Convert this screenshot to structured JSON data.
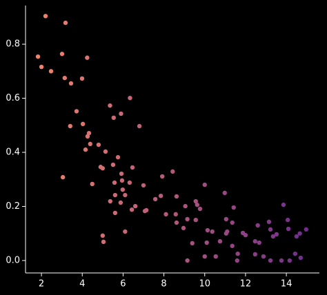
{
  "chart_data": {
    "type": "scatter",
    "x": [
      2.2,
      3.18,
      1.83,
      2.0,
      2.47,
      3.01,
      4.24,
      3.14,
      3.45,
      3.99,
      6.34,
      3.72,
      5.36,
      5.9,
      5.54,
      3.41,
      4.03,
      6.8,
      4.33,
      4.26,
      4.39,
      4.8,
      4.16,
      5.14,
      5.75,
      5.51,
      4.9,
      5.0,
      6.46,
      5.92,
      3.05,
      5.58,
      5.95,
      6.32,
      4.49,
      7.0,
      5.98,
      8.43,
      7.92,
      10.0,
      10.98,
      5.61,
      7.85,
      8.62,
      6.1,
      5.37,
      5.88,
      9.56,
      11.42,
      13.86,
      6.43,
      6.6,
      5.61,
      7.07,
      7.14,
      7.58,
      8.1,
      8.58,
      9.05,
      9.63,
      9.77,
      9.15,
      9.56,
      8.62,
      11.05,
      11.35,
      13.15,
      14.07,
      10.14,
      10.37,
      8.96,
      11.1,
      11.05,
      11.87,
      12.0,
      12.6,
      13.22,
      13.35,
      13.52,
      14.1,
      14.5,
      14.97,
      14.66,
      5.0,
      5.04,
      6.1,
      9.39,
      10.1,
      10.75,
      12.47,
      12.67,
      11.35,
      10.0,
      10.54,
      11.62,
      12.47,
      12.88,
      14.43,
      9.15,
      11.59,
      13.22,
      13.76,
      14.16,
      14.7
    ],
    "values": [
      0.904,
      0.879,
      0.754,
      0.716,
      0.7,
      0.764,
      0.75,
      0.675,
      0.655,
      0.673,
      0.601,
      0.552,
      0.573,
      0.543,
      0.528,
      0.497,
      0.505,
      0.497,
      0.471,
      0.459,
      0.431,
      0.428,
      0.41,
      0.403,
      0.382,
      0.354,
      0.346,
      0.341,
      0.344,
      0.321,
      0.308,
      0.288,
      0.296,
      0.288,
      0.283,
      0.278,
      0.262,
      0.329,
      0.311,
      0.28,
      0.25,
      0.242,
      0.239,
      0.237,
      0.242,
      0.219,
      0.214,
      0.219,
      0.196,
      0.206,
      0.188,
      0.201,
      0.176,
      0.183,
      0.186,
      0.227,
      0.171,
      0.171,
      0.201,
      0.206,
      0.191,
      0.153,
      0.15,
      0.14,
      0.153,
      0.14,
      0.143,
      0.15,
      0.112,
      0.107,
      0.12,
      0.107,
      0.1,
      0.102,
      0.094,
      0.13,
      0.115,
      0.089,
      0.097,
      0.117,
      0.089,
      0.115,
      0.1,
      0.092,
      0.069,
      0.107,
      0.064,
      0.066,
      0.071,
      0.071,
      0.066,
      0.054,
      0.015,
      0.015,
      0.025,
      0.023,
      0.015,
      0.025,
      0.0,
      0.0,
      0.0,
      0.0,
      0.0,
      0.01
    ],
    "color_range": [
      "#f8876a",
      "#6a2a8e"
    ],
    "xlim": [
      1.22,
      15.62
    ],
    "ylim": [
      -0.046,
      0.943
    ],
    "xticks": [
      2,
      4,
      6,
      8,
      10,
      12,
      14
    ],
    "yticks": [
      {
        "value": 0,
        "label": "0.0"
      },
      {
        "value": 0.2,
        "label": "0.2"
      },
      {
        "value": 0.4,
        "label": "0.4"
      },
      {
        "value": 0.6,
        "label": "0.6"
      },
      {
        "value": 0.8,
        "label": "0.8"
      }
    ]
  }
}
